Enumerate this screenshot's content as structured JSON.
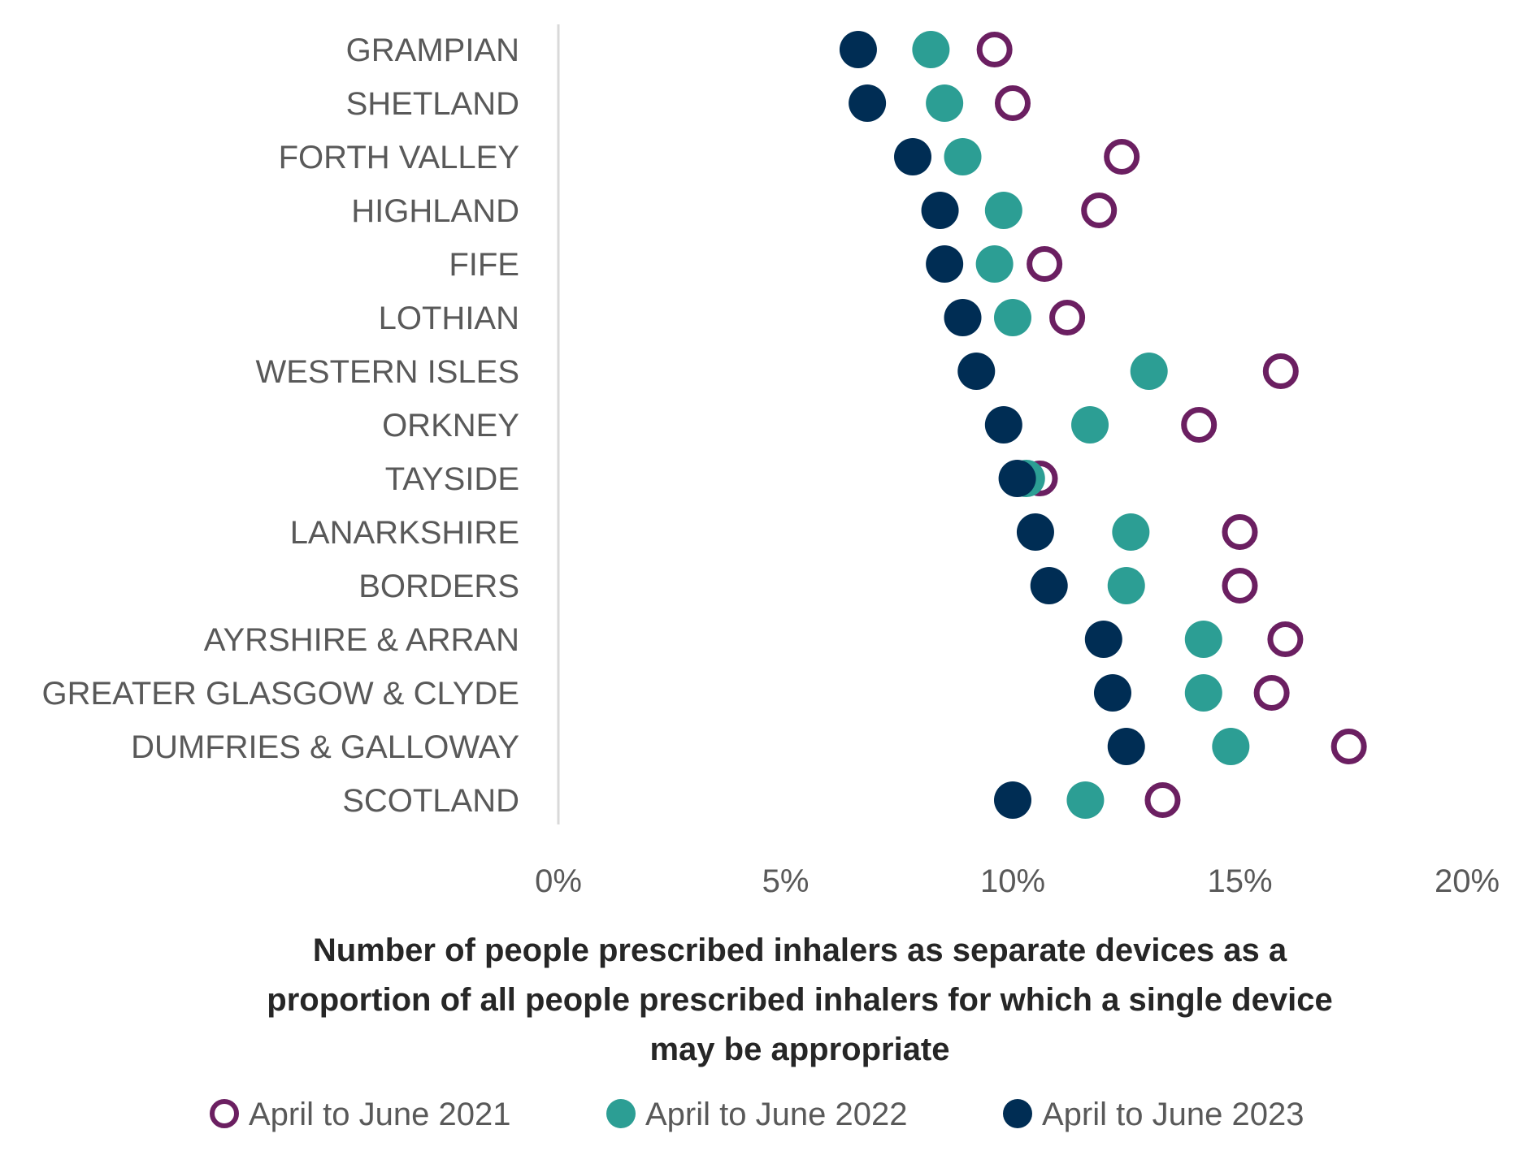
{
  "chart_data": {
    "type": "scatter",
    "subtype": "dot-plot",
    "categories": [
      "GRAMPIAN",
      "SHETLAND",
      "FORTH VALLEY",
      "HIGHLAND",
      "FIFE",
      "LOTHIAN",
      "WESTERN ISLES",
      "ORKNEY",
      "TAYSIDE",
      "LANARKSHIRE",
      "BORDERS",
      "AYRSHIRE & ARRAN",
      "GREATER GLASGOW & CLYDE",
      "DUMFRIES & GALLOWAY",
      "SCOTLAND"
    ],
    "series": [
      {
        "name": "April to June 2021",
        "color": "#6B1F61",
        "marker": "hollow-circle",
        "values": [
          9.6,
          10.0,
          12.4,
          11.9,
          10.7,
          11.2,
          15.9,
          14.1,
          10.6,
          15.0,
          15.0,
          16.0,
          15.7,
          17.4,
          13.3
        ]
      },
      {
        "name": "April to June 2022",
        "color": "#2C9E94",
        "marker": "filled-circle",
        "values": [
          8.2,
          8.5,
          8.9,
          9.8,
          9.6,
          10.0,
          13.0,
          11.7,
          10.3,
          12.6,
          12.5,
          14.2,
          14.2,
          14.8,
          11.6
        ]
      },
      {
        "name": "April to June 2023",
        "color": "#002D54",
        "marker": "filled-circle",
        "values": [
          6.6,
          6.8,
          7.8,
          8.4,
          8.5,
          8.9,
          9.2,
          9.8,
          10.1,
          10.5,
          10.8,
          12.0,
          12.2,
          12.5,
          10.0
        ]
      }
    ],
    "xlim": [
      0,
      20
    ],
    "xticks": [
      0,
      5,
      10,
      15,
      20
    ],
    "xtick_labels": [
      "0%",
      "5%",
      "10%",
      "15%",
      "20%"
    ],
    "xlabel_lines": [
      "Number of people prescribed inhalers as separate devices as a",
      "proportion of all people prescribed inhalers for which a single device",
      "may be appropriate"
    ],
    "legend_position": "bottom",
    "grid": false
  }
}
